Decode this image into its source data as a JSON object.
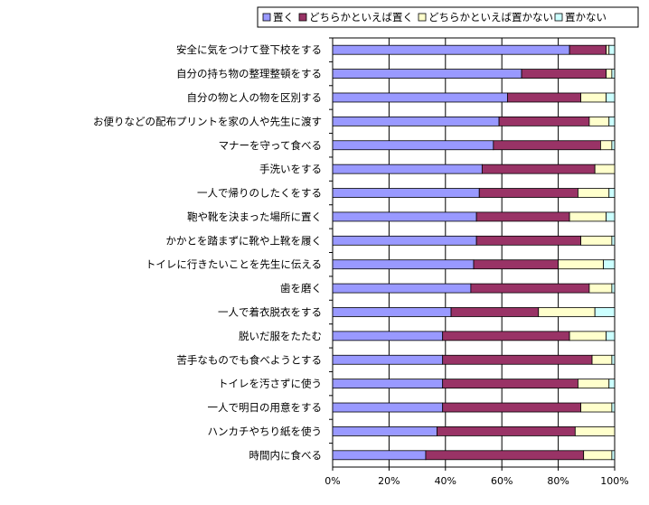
{
  "chart_data": {
    "type": "bar",
    "orientation": "horizontal",
    "stacked": true,
    "categories": [
      "安全に気をつけて登下校をする",
      "自分の持ち物の整理整頓をする",
      "自分の物と人の物を区別する",
      "お便りなどの配布プリントを家の人や先生に渡す",
      "マナーを守って食べる",
      "手洗いをする",
      "一人で帰りのしたくをする",
      "鞄や靴を決まった場所に置く",
      "かかとを踏まずに靴や上靴を履く",
      "トイレに行きたいことを先生に伝える",
      "歯を磨く",
      "一人で着衣脱衣をする",
      "脱いだ服をたたむ",
      "苦手なものでも食べようとする",
      "トイレを汚さずに使う",
      "一人で明日の用意をする",
      "ハンカチやちり紙を使う",
      "時間内に食べる"
    ],
    "series": [
      {
        "name": "置く",
        "color": "#9999ff",
        "values": [
          84,
          67,
          62,
          59,
          57,
          53,
          52,
          51,
          51,
          50,
          49,
          42,
          39,
          39,
          39,
          39,
          37,
          33
        ]
      },
      {
        "name": "どちらかといえば置く",
        "color": "#993366",
        "values": [
          13,
          30,
          26,
          32,
          38,
          40,
          35,
          33,
          37,
          30,
          42,
          31,
          45,
          53,
          48,
          49,
          49,
          56
        ]
      },
      {
        "name": "どちらかといえば置かない",
        "color": "#ffffcc",
        "values": [
          1,
          2,
          9,
          7,
          4,
          7,
          11,
          13,
          11,
          16,
          8,
          20,
          13,
          7,
          11,
          11,
          14,
          10
        ]
      },
      {
        "name": "置かない",
        "color": "#ccffff",
        "values": [
          2,
          1,
          3,
          2,
          1,
          0,
          2,
          3,
          1,
          4,
          1,
          7,
          3,
          1,
          2,
          1,
          0,
          1
        ]
      }
    ],
    "xlim": [
      0,
      100
    ],
    "x_ticks": [
      "0%",
      "20%",
      "40%",
      "60%",
      "80%",
      "100%"
    ],
    "grid": "vertical",
    "legend_position": "top-right",
    "title": "",
    "xlabel": "",
    "ylabel": ""
  }
}
